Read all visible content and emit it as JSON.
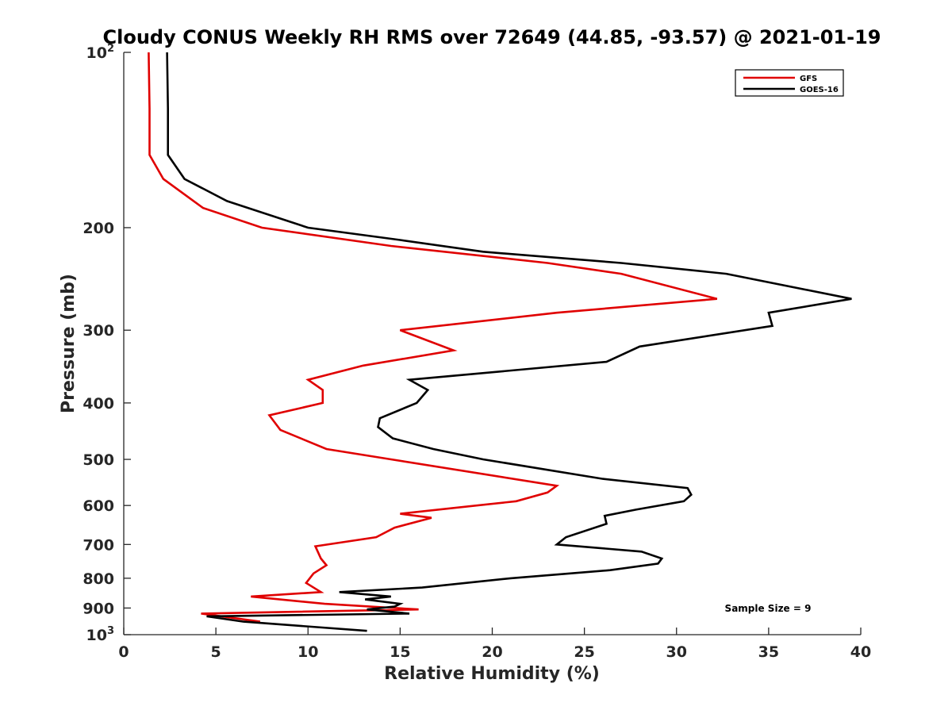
{
  "chart_data": {
    "type": "line",
    "title": "Cloudy CONUS Weekly RH RMS over 72649 (44.85, -93.57) @ 2021-01-19",
    "xlabel": "Relative Humidity (%)",
    "ylabel": "Pressure (mb)",
    "xlim": [
      0,
      40
    ],
    "ylim": [
      100,
      1000
    ],
    "y_scale": "log",
    "y_reversed": true,
    "grid": false,
    "legend_position": "top-right",
    "x_ticks": [
      0,
      5,
      10,
      15,
      20,
      25,
      30,
      35,
      40
    ],
    "y_ticks": [
      {
        "value": 100,
        "label": "10",
        "exp": "2"
      },
      {
        "value": 200,
        "label": "200",
        "exp": ""
      },
      {
        "value": 300,
        "label": "300",
        "exp": ""
      },
      {
        "value": 400,
        "label": "400",
        "exp": ""
      },
      {
        "value": 500,
        "label": "500",
        "exp": ""
      },
      {
        "value": 600,
        "label": "600",
        "exp": ""
      },
      {
        "value": 700,
        "label": "700",
        "exp": ""
      },
      {
        "value": 800,
        "label": "800",
        "exp": ""
      },
      {
        "value": 900,
        "label": "900",
        "exp": ""
      },
      {
        "value": 1000,
        "label": "10",
        "exp": "3"
      }
    ],
    "annotation": "Sample Size = 9",
    "series": [
      {
        "name": "GFS",
        "color": "#e00000",
        "points": [
          [
            1.35,
            100
          ],
          [
            1.4,
            125
          ],
          [
            1.4,
            150
          ],
          [
            2.15,
            165
          ],
          [
            4.3,
            185
          ],
          [
            7.5,
            200
          ],
          [
            14.5,
            215
          ],
          [
            23.0,
            230
          ],
          [
            27.0,
            240
          ],
          [
            32.2,
            265
          ],
          [
            23.5,
            280
          ],
          [
            15.0,
            300
          ],
          [
            17.9,
            325
          ],
          [
            13.0,
            345
          ],
          [
            10.0,
            365
          ],
          [
            10.8,
            380
          ],
          [
            10.8,
            400
          ],
          [
            7.9,
            420
          ],
          [
            8.5,
            445
          ],
          [
            11.0,
            480
          ],
          [
            14.5,
            500
          ],
          [
            23.5,
            555
          ],
          [
            23.0,
            570
          ],
          [
            21.3,
            590
          ],
          [
            15.0,
            620
          ],
          [
            16.7,
            630
          ],
          [
            14.7,
            655
          ],
          [
            13.7,
            680
          ],
          [
            10.4,
            705
          ],
          [
            10.7,
            740
          ],
          [
            11.0,
            760
          ],
          [
            10.3,
            785
          ],
          [
            9.9,
            815
          ],
          [
            10.7,
            845
          ],
          [
            6.9,
            860
          ],
          [
            10.9,
            885
          ],
          [
            16.0,
            905
          ],
          [
            4.2,
            920
          ],
          [
            7.4,
            950
          ]
        ]
      },
      {
        "name": "GOES-16",
        "color": "#000000",
        "points": [
          [
            2.35,
            100
          ],
          [
            2.4,
            125
          ],
          [
            2.4,
            150
          ],
          [
            3.3,
            165
          ],
          [
            5.6,
            180
          ],
          [
            10.0,
            200
          ],
          [
            15.0,
            210
          ],
          [
            19.5,
            220
          ],
          [
            27.0,
            230
          ],
          [
            32.7,
            240
          ],
          [
            39.5,
            265
          ],
          [
            35.0,
            280
          ],
          [
            35.2,
            295
          ],
          [
            28.0,
            320
          ],
          [
            26.2,
            340
          ],
          [
            15.5,
            365
          ],
          [
            16.5,
            380
          ],
          [
            15.9,
            400
          ],
          [
            13.9,
            425
          ],
          [
            13.8,
            440
          ],
          [
            14.6,
            460
          ],
          [
            16.8,
            480
          ],
          [
            19.5,
            500
          ],
          [
            26.0,
            540
          ],
          [
            30.6,
            560
          ],
          [
            30.8,
            575
          ],
          [
            30.4,
            590
          ],
          [
            27.8,
            610
          ],
          [
            26.1,
            625
          ],
          [
            26.2,
            645
          ],
          [
            24.0,
            680
          ],
          [
            23.5,
            700
          ],
          [
            28.1,
            720
          ],
          [
            29.2,
            740
          ],
          [
            29.0,
            755
          ],
          [
            26.4,
            775
          ],
          [
            21.0,
            800
          ],
          [
            16.2,
            830
          ],
          [
            11.7,
            845
          ],
          [
            14.5,
            860
          ],
          [
            13.1,
            870
          ],
          [
            15.0,
            885
          ],
          [
            14.7,
            895
          ],
          [
            13.2,
            905
          ],
          [
            15.5,
            920
          ],
          [
            4.5,
            930
          ],
          [
            6.5,
            950
          ],
          [
            13.2,
            985
          ]
        ]
      }
    ]
  }
}
